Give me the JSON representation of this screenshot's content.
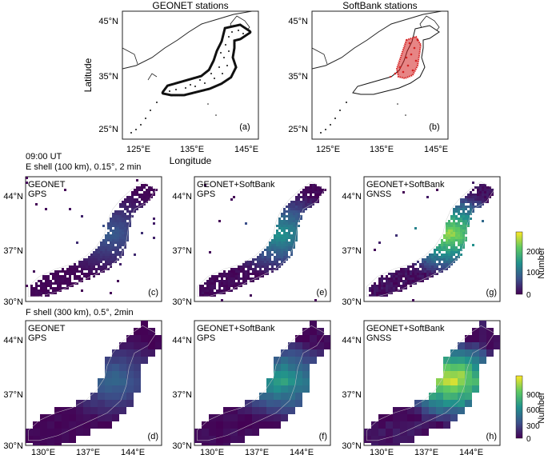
{
  "top_panels": [
    {
      "id": "a",
      "title": "GEONET stations",
      "label": "(a)",
      "station_color": "#111111"
    },
    {
      "id": "b",
      "title": "SoftBank stations",
      "label": "(b)",
      "station_color": "#d42020"
    }
  ],
  "top_axes": {
    "xlabel": "Longitude",
    "ylabel": "Latitude",
    "xticks": [
      "125°E",
      "135°E",
      "145°E"
    ],
    "yticks": [
      "45°N",
      "35°N",
      "25°N"
    ]
  },
  "row_headers": [
    {
      "time": "09:00 UT",
      "shell": "E shell (100 km), 0.15°, 2 min"
    },
    {
      "shell": "F shell (300 km), 0.5°, 2min"
    }
  ],
  "grid_panels": [
    {
      "id": "c",
      "title1": "GEONET",
      "title2": "GPS",
      "label": "(c)",
      "row": 0,
      "col": 0,
      "intensity": 0.25
    },
    {
      "id": "e",
      "title1": "GEONET+SoftBank",
      "title2": "GPS",
      "label": "(e)",
      "row": 0,
      "col": 1,
      "intensity": 0.45
    },
    {
      "id": "g",
      "title1": "GEONET+SoftBank",
      "title2": "GNSS",
      "label": "(g)",
      "row": 0,
      "col": 2,
      "intensity": 0.75
    },
    {
      "id": "d",
      "title1": "GEONET",
      "title2": "GPS",
      "label": "(d)",
      "row": 1,
      "col": 0,
      "intensity": 0.3
    },
    {
      "id": "f",
      "title1": "GEONET+SoftBank",
      "title2": "GPS",
      "label": "(f)",
      "row": 1,
      "col": 1,
      "intensity": 0.5
    },
    {
      "id": "h",
      "title1": "GEONET+SoftBank",
      "title2": "GNSS",
      "label": "(h)",
      "row": 1,
      "col": 2,
      "intensity": 0.85
    }
  ],
  "grid_axes": {
    "yticks": [
      "44°N",
      "37°N",
      "30°N"
    ],
    "xticks": [
      "130°E",
      "137°E",
      "144°E"
    ]
  },
  "colorbars": [
    {
      "label": "Number",
      "ticks": [
        "200",
        "100",
        "0"
      ],
      "max": 250
    },
    {
      "label": "Number",
      "ticks": [
        "900",
        "600",
        "300",
        "0"
      ],
      "max": 1100
    }
  ],
  "colors": {
    "viridis": [
      "#440154",
      "#3b528b",
      "#21918c",
      "#5ec962",
      "#fde725"
    ]
  }
}
